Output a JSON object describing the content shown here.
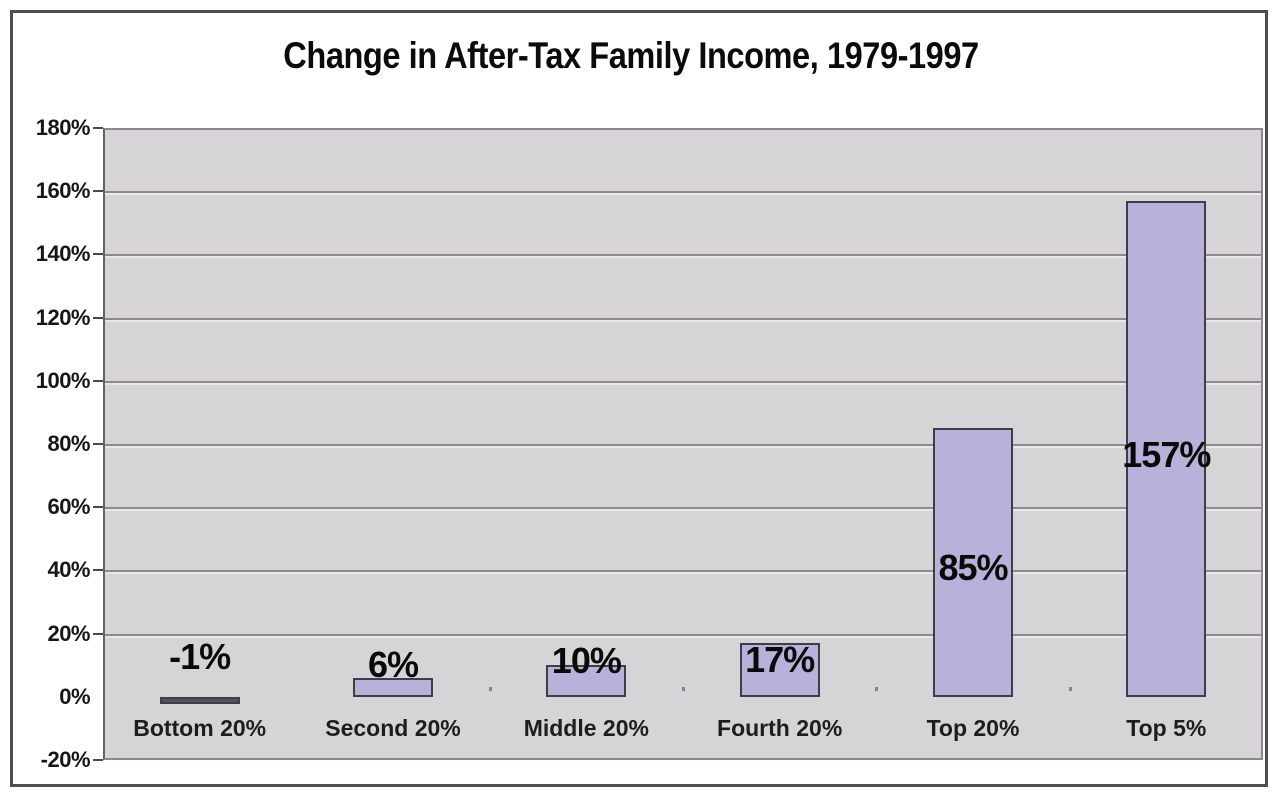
{
  "chart_data": {
    "type": "bar",
    "title": "Change in After-Tax Family Income, 1979-1997",
    "categories": [
      "Bottom 20%",
      "Second 20%",
      "Middle 20%",
      "Fourth 20%",
      "Top 20%",
      "Top 5%"
    ],
    "values": [
      -1,
      6,
      10,
      17,
      85,
      157
    ],
    "value_labels": [
      "-1%",
      "6%",
      "10%",
      "17%",
      "85%",
      "157%"
    ],
    "xlabel": "",
    "ylabel": "",
    "ylim": [
      -20,
      180
    ],
    "ytick_step": 20,
    "yticks": [
      180,
      160,
      140,
      120,
      100,
      80,
      60,
      40,
      20,
      0,
      -20
    ],
    "ytick_labels": [
      "180%",
      "160%",
      "140%",
      "120%",
      "100%",
      "80%",
      "60%",
      "40%",
      "20%",
      "0%",
      "-20%"
    ],
    "grid": "horizontal",
    "legend": "none",
    "colors": {
      "bar_fill": "#b9b1da",
      "bar_border": "#413d46",
      "negative_bar_fill": "#56525c",
      "plot_background": "#d6d4d7",
      "gridline": "#8d898d",
      "tick": "#4a4a4a",
      "text": "#111111",
      "frame_border": "#4e4e50",
      "background": "#ffffff"
    }
  }
}
